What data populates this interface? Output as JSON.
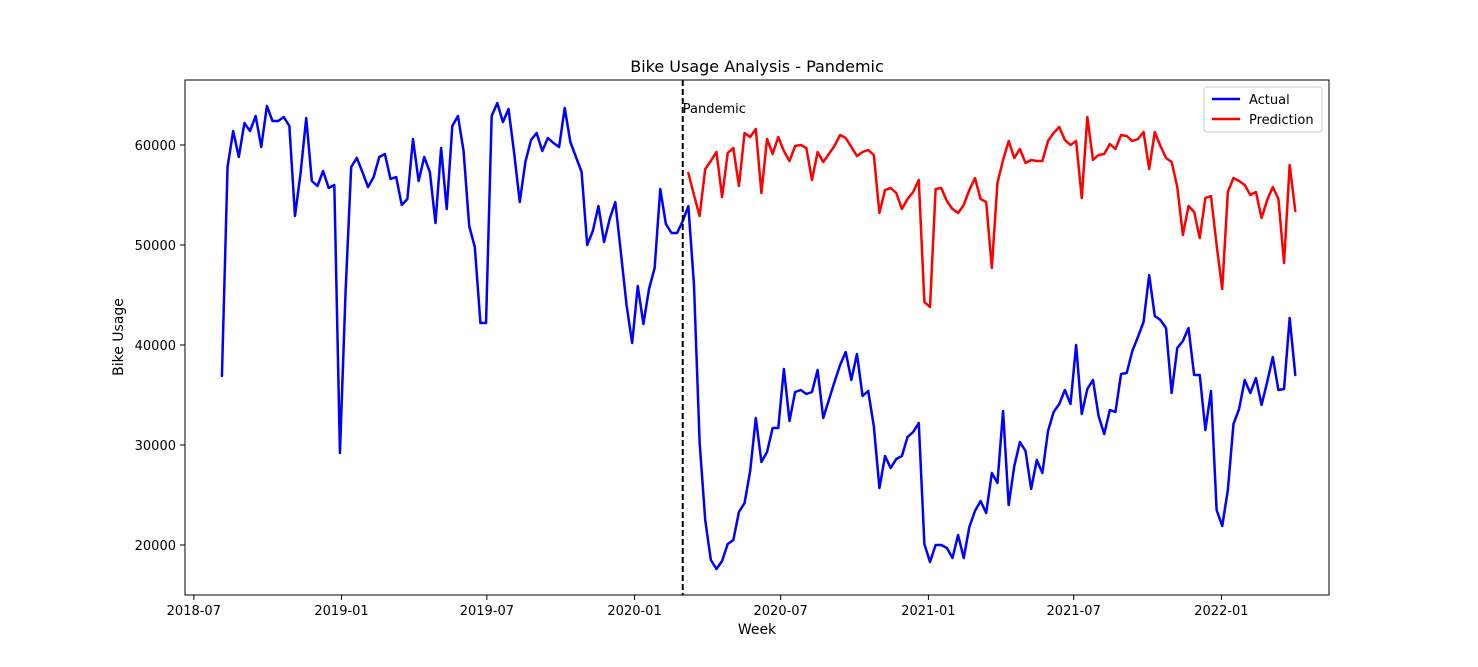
{
  "chart_data": {
    "type": "line",
    "title": "Bike Usage Analysis - Pandemic",
    "xlabel": "Week",
    "ylabel": "Bike Usage",
    "xlim": [
      "2018-06-20",
      "2022-05-15"
    ],
    "ylim": [
      15000,
      66500
    ],
    "x_ticks": [
      "2018-07",
      "2019-01",
      "2019-07",
      "2020-01",
      "2020-07",
      "2021-01",
      "2021-07",
      "2022-01"
    ],
    "y_ticks": [
      20000,
      30000,
      40000,
      50000,
      60000
    ],
    "grid": false,
    "legend_position": "top-right",
    "annotation": {
      "label": "Pandemic",
      "date": "2020-03-01",
      "style": "dashed-vertical-line"
    },
    "series": [
      {
        "name": "Actual",
        "color": "#0000ff",
        "start": "2018-08-05",
        "values": [
          36900,
          57800,
          61400,
          58800,
          62200,
          61400,
          62900,
          59800,
          63900,
          62400,
          62400,
          62800,
          61900,
          52900,
          57200,
          62700,
          56400,
          55900,
          57400,
          55700,
          56000,
          29200,
          45300,
          57800,
          58700,
          57300,
          55800,
          56800,
          58800,
          59100,
          56600,
          56800,
          54000,
          54600,
          60600,
          56400,
          58800,
          57300,
          52200,
          59700,
          53600,
          61900,
          62900,
          59400,
          51900,
          49800,
          42200,
          42200,
          62900,
          64200,
          62300,
          63600,
          59200,
          54300,
          58300,
          60500,
          61200,
          59400,
          60700,
          60200,
          59800,
          63700,
          60300,
          58800,
          57300,
          50000,
          51400,
          53900,
          50300,
          52600,
          54300,
          49200,
          44000,
          40200,
          45900,
          42100,
          45600,
          47700,
          55600,
          52100,
          51200,
          51200,
          52400,
          53900,
          46000,
          30300,
          22500,
          18500,
          17600,
          18400,
          20100,
          20500,
          23300,
          24200,
          27400,
          32700,
          28300,
          29300,
          31700,
          31700,
          37600,
          32400,
          35300,
          35500,
          35100,
          35300,
          37500,
          32700,
          34500,
          36300,
          38000,
          39300,
          36500,
          39100,
          34900,
          35400,
          31900,
          25700,
          28900,
          27700,
          28600,
          28900,
          30800,
          31300,
          32200,
          20100,
          18300,
          20000,
          20000,
          19700,
          18700,
          21000,
          18700,
          21800,
          23400,
          24400,
          23200,
          27200,
          26200,
          33400,
          24000,
          27900,
          30300,
          29400,
          25600,
          28500,
          27200,
          31400,
          33300,
          34100,
          35500,
          34100,
          40000,
          33100,
          35600,
          36500,
          32900,
          31100,
          33500,
          33300,
          37100,
          37200,
          39400,
          40800,
          42300,
          47000,
          42900,
          42500,
          41700,
          35200,
          39700,
          40400,
          41700,
          37000,
          37000,
          31500,
          35400,
          23500,
          21900,
          25500,
          32100,
          33600,
          36500,
          35200,
          36700,
          34000,
          36300,
          38800,
          35500,
          35600,
          42700,
          37000
        ]
      },
      {
        "name": "Prediction",
        "color": "#ff0000",
        "start": "2020-03-08",
        "values": [
          57200,
          55000,
          52900,
          57600,
          58400,
          59300,
          54800,
          59200,
          59700,
          55900,
          61200,
          60800,
          61600,
          55200,
          60600,
          59100,
          60800,
          59400,
          58400,
          59900,
          60000,
          59700,
          56500,
          59300,
          58300,
          59100,
          59900,
          61000,
          60700,
          59800,
          58900,
          59300,
          59500,
          59000,
          53200,
          55500,
          55700,
          55200,
          53600,
          54600,
          55300,
          56500,
          44300,
          43800,
          55600,
          55700,
          54400,
          53600,
          53200,
          54000,
          55500,
          56700,
          54600,
          54300,
          47700,
          56200,
          58500,
          60400,
          58700,
          59600,
          58200,
          58500,
          58400,
          58400,
          60400,
          61200,
          61800,
          60500,
          60000,
          60400,
          54700,
          62800,
          58500,
          59000,
          59100,
          60100,
          59600,
          61000,
          60900,
          60400,
          60600,
          61300,
          57600,
          61300,
          59900,
          58700,
          58300,
          55800,
          51000,
          53900,
          53300,
          50700,
          54700,
          54900,
          50000,
          45600,
          55300,
          56700,
          56400,
          56000,
          55000,
          55300,
          52700,
          54500,
          55800,
          54600,
          48200,
          58000,
          53400
        ]
      }
    ]
  }
}
